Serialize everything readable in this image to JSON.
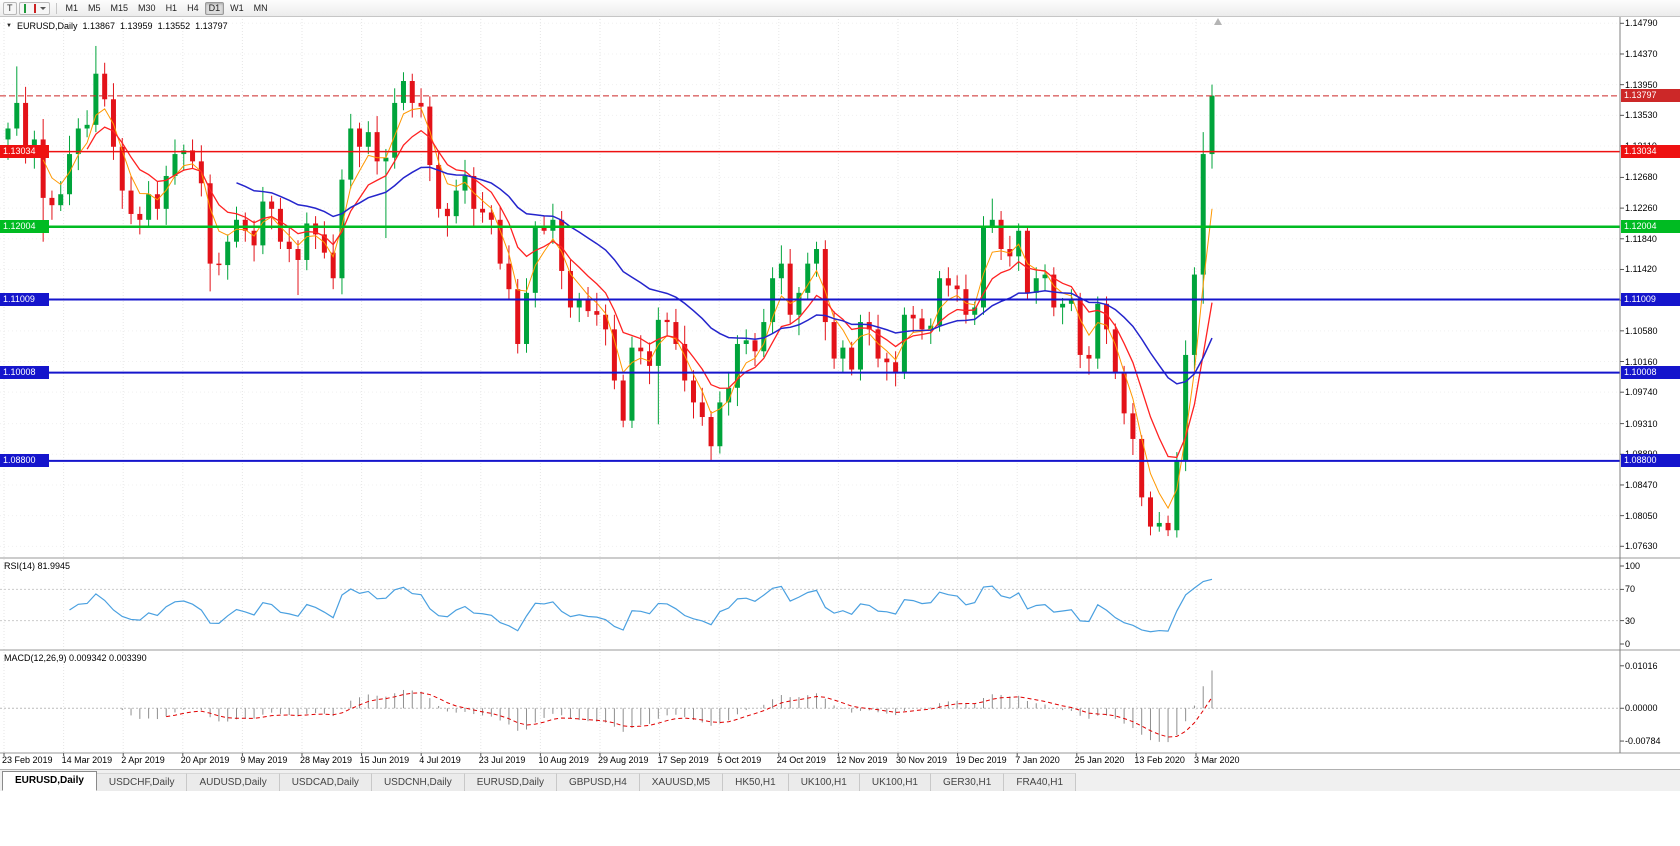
{
  "toolbar": {
    "tool_button": "T",
    "timeframes": [
      "M1",
      "M5",
      "M15",
      "M30",
      "H1",
      "H4",
      "D1",
      "W1",
      "MN"
    ],
    "active_timeframe": "D1"
  },
  "icons": {
    "symbol_caret": "▼"
  },
  "header": {
    "symbol": "EURUSD,Daily",
    "open": "1.13867",
    "high": "1.13959",
    "low": "1.13552",
    "close": "1.13797"
  },
  "chart_data": [
    {
      "type": "candlestick",
      "symbol": "EURUSD",
      "timeframe": "Daily",
      "ylim": [
        1.0747,
        1.1489
      ],
      "y_tick_labels": [
        "1.14790",
        "1.14370",
        "1.13950",
        "1.13530",
        "1.13110",
        "1.12680",
        "1.12260",
        "1.11840",
        "1.11420",
        "1.11000",
        "1.10580",
        "1.10160",
        "1.09740",
        "1.09310",
        "1.08890",
        "1.08470",
        "1.08050",
        "1.07630"
      ],
      "x_tick_labels": [
        "23 Feb 2019",
        "14 Mar 2019",
        "2 Apr 2019",
        "20 Apr 2019",
        "9 May 2019",
        "28 May 2019",
        "15 Jun 2019",
        "4 Jul 2019",
        "23 Jul 2019",
        "10 Aug 2019",
        "29 Aug 2019",
        "17 Sep 2019",
        "5 Oct 2019",
        "24 Oct 2019",
        "12 Nov 2019",
        "30 Nov 2019",
        "19 Dec 2019",
        "7 Jan 2020",
        "25 Jan 2020",
        "13 Feb 2020",
        "3 Mar 2020"
      ],
      "up_color": "#00a43b",
      "down_color": "#e31219",
      "grid_color": "#e6e6e6",
      "moving_averages": [
        {
          "render_period": 4,
          "color": "#ff9800",
          "width": 1
        },
        {
          "render_period": 9,
          "color": "#ff2222",
          "width": 1.3
        },
        {
          "render_period": 26,
          "color": "#2525cc",
          "width": 1.5
        }
      ],
      "horizontal_lines": [
        {
          "value": 1.13797,
          "label": "1.13797",
          "color": "#cc2828",
          "style": "dashed",
          "width": 1,
          "boxes": "right"
        },
        {
          "value": 1.13034,
          "label": "1.13034",
          "color": "#ee1111",
          "style": "solid",
          "width": 1.5,
          "boxes": "both"
        },
        {
          "value": 1.12004,
          "label": "1.12004",
          "color": "#00bb22",
          "style": "solid",
          "width": 2.5,
          "boxes": "both"
        },
        {
          "value": 1.11009,
          "label": "1.11009",
          "color": "#1515cc",
          "style": "solid",
          "width": 2,
          "boxes": "both"
        },
        {
          "value": 1.10008,
          "label": "1.10008",
          "color": "#1515cc",
          "style": "solid",
          "width": 2,
          "boxes": "both"
        },
        {
          "value": 1.088,
          "label": "1.08800",
          "color": "#1515cc",
          "style": "solid",
          "width": 2,
          "boxes": "both"
        }
      ],
      "candles": [
        [
          1.132,
          1.1343,
          1.1292,
          1.1335
        ],
        [
          1.1335,
          1.142,
          1.1325,
          1.137
        ],
        [
          1.137,
          1.1392,
          1.1287,
          1.1305
        ],
        [
          1.1305,
          1.1332,
          1.128,
          1.132
        ],
        [
          1.132,
          1.1348,
          1.118,
          1.124
        ],
        [
          1.124,
          1.125,
          1.121,
          1.123
        ],
        [
          1.123,
          1.1263,
          1.1222,
          1.1245
        ],
        [
          1.1245,
          1.1325,
          1.123,
          1.13
        ],
        [
          1.13,
          1.1349,
          1.1278,
          1.1335
        ],
        [
          1.1335,
          1.136,
          1.1323,
          1.134
        ],
        [
          1.134,
          1.1448,
          1.133,
          1.141
        ],
        [
          1.141,
          1.1425,
          1.1365,
          1.1375
        ],
        [
          1.1375,
          1.1397,
          1.1292,
          1.131
        ],
        [
          1.131,
          1.1322,
          1.1225,
          1.125
        ],
        [
          1.125,
          1.127,
          1.1204,
          1.1218
        ],
        [
          1.1218,
          1.1228,
          1.119,
          1.121
        ],
        [
          1.121,
          1.1263,
          1.1202,
          1.1245
        ],
        [
          1.1245,
          1.1262,
          1.121,
          1.1225
        ],
        [
          1.1225,
          1.1284,
          1.1203,
          1.127
        ],
        [
          1.127,
          1.132,
          1.1258,
          1.13
        ],
        [
          1.13,
          1.1313,
          1.1277,
          1.1305
        ],
        [
          1.1305,
          1.132,
          1.128,
          1.129
        ],
        [
          1.129,
          1.1312,
          1.1242,
          1.126
        ],
        [
          1.126,
          1.1272,
          1.1112,
          1.115
        ],
        [
          1.115,
          1.1165,
          1.1134,
          1.1148
        ],
        [
          1.1148,
          1.119,
          1.1128,
          1.118
        ],
        [
          1.118,
          1.1228,
          1.1172,
          1.121
        ],
        [
          1.121,
          1.122,
          1.118,
          1.1195
        ],
        [
          1.1195,
          1.1209,
          1.1153,
          1.1175
        ],
        [
          1.1175,
          1.1255,
          1.1163,
          1.1235
        ],
        [
          1.1235,
          1.1243,
          1.1197,
          1.1225
        ],
        [
          1.1225,
          1.124,
          1.117,
          1.118
        ],
        [
          1.118,
          1.1202,
          1.1152,
          1.117
        ],
        [
          1.117,
          1.1182,
          1.1107,
          1.1155
        ],
        [
          1.1155,
          1.122,
          1.1141,
          1.1205
        ],
        [
          1.1205,
          1.1215,
          1.117,
          1.119
        ],
        [
          1.119,
          1.1208,
          1.1157,
          1.1165
        ],
        [
          1.1165,
          1.119,
          1.1115,
          1.113
        ],
        [
          1.113,
          1.1279,
          1.1108,
          1.1265
        ],
        [
          1.1265,
          1.1355,
          1.1253,
          1.1335
        ],
        [
          1.1335,
          1.1343,
          1.1282,
          1.131
        ],
        [
          1.131,
          1.1345,
          1.13,
          1.133
        ],
        [
          1.133,
          1.1352,
          1.1272,
          1.129
        ],
        [
          1.129,
          1.1307,
          1.1185,
          1.1295
        ],
        [
          1.1295,
          1.139,
          1.128,
          1.137
        ],
        [
          1.137,
          1.1412,
          1.136,
          1.14
        ],
        [
          1.14,
          1.141,
          1.135,
          1.137
        ],
        [
          1.137,
          1.139,
          1.135,
          1.1365
        ],
        [
          1.1365,
          1.1379,
          1.1263,
          1.1285
        ],
        [
          1.1285,
          1.1305,
          1.1213,
          1.1225
        ],
        [
          1.1225,
          1.1233,
          1.1187,
          1.1215
        ],
        [
          1.1215,
          1.1265,
          1.1205,
          1.125
        ],
        [
          1.125,
          1.1292,
          1.1232,
          1.127
        ],
        [
          1.127,
          1.1282,
          1.12,
          1.1225
        ],
        [
          1.1225,
          1.1248,
          1.1206,
          1.122
        ],
        [
          1.122,
          1.123,
          1.119,
          1.121
        ],
        [
          1.121,
          1.1228,
          1.1142,
          1.115
        ],
        [
          1.115,
          1.1175,
          1.11,
          1.1115
        ],
        [
          1.1115,
          1.1129,
          1.1027,
          1.104
        ],
        [
          1.104,
          1.113,
          1.1028,
          1.111
        ],
        [
          1.111,
          1.1208,
          1.109,
          1.12
        ],
        [
          1.12,
          1.1215,
          1.119,
          1.1195
        ],
        [
          1.1195,
          1.1232,
          1.1177,
          1.121
        ],
        [
          1.121,
          1.1222,
          1.1115,
          1.114
        ],
        [
          1.114,
          1.1155,
          1.1076,
          1.109
        ],
        [
          1.109,
          1.111,
          1.107,
          1.11
        ],
        [
          1.11,
          1.1118,
          1.1077,
          1.1085
        ],
        [
          1.1085,
          1.111,
          1.1065,
          1.108
        ],
        [
          1.108,
          1.1094,
          1.1038,
          1.106
        ],
        [
          1.106,
          1.108,
          1.0978,
          1.099
        ],
        [
          1.099,
          1.0998,
          1.0926,
          1.0935
        ],
        [
          1.0935,
          1.105,
          1.0925,
          1.1035
        ],
        [
          1.1035,
          1.1052,
          1.1012,
          1.103
        ],
        [
          1.103,
          1.1042,
          1.0985,
          1.101
        ],
        [
          1.101,
          1.109,
          1.093,
          1.1073
        ],
        [
          1.1073,
          1.1083,
          1.105,
          1.107
        ],
        [
          1.107,
          1.1088,
          1.1032,
          1.104
        ],
        [
          1.104,
          1.1065,
          1.0975,
          1.099
        ],
        [
          1.099,
          1.1004,
          1.0938,
          1.096
        ],
        [
          1.096,
          1.098,
          1.0928,
          1.094
        ],
        [
          1.094,
          1.0948,
          1.0879,
          1.09
        ],
        [
          1.09,
          1.0975,
          1.089,
          1.096
        ],
        [
          1.096,
          1.1002,
          1.0942,
          1.098
        ],
        [
          1.098,
          1.1052,
          1.0955,
          1.104
        ],
        [
          1.104,
          1.106,
          1.1026,
          1.1045
        ],
        [
          1.1045,
          1.1055,
          1.101,
          1.103
        ],
        [
          1.103,
          1.1088,
          1.1022,
          1.107
        ],
        [
          1.107,
          1.1145,
          1.1055,
          1.113
        ],
        [
          1.113,
          1.1175,
          1.1108,
          1.115
        ],
        [
          1.115,
          1.117,
          1.1068,
          1.108
        ],
        [
          1.108,
          1.1118,
          1.1052,
          1.111
        ],
        [
          1.111,
          1.1165,
          1.11,
          1.115
        ],
        [
          1.115,
          1.118,
          1.1132,
          1.117
        ],
        [
          1.117,
          1.1182,
          1.1045,
          1.107
        ],
        [
          1.107,
          1.1085,
          1.1006,
          1.102
        ],
        [
          1.102,
          1.1045,
          1.1,
          1.1035
        ],
        [
          1.1035,
          1.1043,
          1.0997,
          1.1005
        ],
        [
          1.1005,
          1.108,
          1.099,
          1.107
        ],
        [
          1.107,
          1.1084,
          1.1038,
          1.106
        ],
        [
          1.106,
          1.108,
          1.1008,
          1.102
        ],
        [
          1.102,
          1.1028,
          1.099,
          1.1015
        ],
        [
          1.1015,
          1.103,
          1.0982,
          1.1
        ],
        [
          1.1,
          1.109,
          1.0992,
          1.108
        ],
        [
          1.108,
          1.1092,
          1.1055,
          1.1075
        ],
        [
          1.1075,
          1.1088,
          1.1046,
          1.106
        ],
        [
          1.106,
          1.1075,
          1.104,
          1.1065
        ],
        [
          1.1065,
          1.114,
          1.1057,
          1.113
        ],
        [
          1.113,
          1.1145,
          1.1105,
          1.112
        ],
        [
          1.112,
          1.1134,
          1.1098,
          1.1115
        ],
        [
          1.1115,
          1.1135,
          1.1068,
          1.108
        ],
        [
          1.108,
          1.1098,
          1.1066,
          1.109
        ],
        [
          1.109,
          1.1215,
          1.108,
          1.12
        ],
        [
          1.12,
          1.1239,
          1.1192,
          1.121
        ],
        [
          1.121,
          1.1222,
          1.1155,
          1.117
        ],
        [
          1.117,
          1.1188,
          1.1146,
          1.116
        ],
        [
          1.116,
          1.1205,
          1.114,
          1.1195
        ],
        [
          1.1195,
          1.12,
          1.1102,
          1.111
        ],
        [
          1.111,
          1.1145,
          1.1095,
          1.113
        ],
        [
          1.113,
          1.1149,
          1.1113,
          1.1135
        ],
        [
          1.1135,
          1.1145,
          1.1078,
          1.109
        ],
        [
          1.109,
          1.1103,
          1.1067,
          1.1095
        ],
        [
          1.1095,
          1.1115,
          1.1085,
          1.11
        ],
        [
          1.11,
          1.111,
          1.1007,
          1.1025
        ],
        [
          1.1025,
          1.1037,
          1.0998,
          1.102
        ],
        [
          1.102,
          1.1105,
          1.1006,
          1.1095
        ],
        [
          1.1095,
          1.1105,
          1.104,
          1.106
        ],
        [
          1.106,
          1.1068,
          1.0992,
          1.1
        ],
        [
          1.1,
          1.101,
          1.093,
          1.0945
        ],
        [
          1.0945,
          1.0959,
          1.0888,
          1.091
        ],
        [
          1.091,
          1.0915,
          1.0818,
          1.083
        ],
        [
          1.083,
          1.0838,
          1.0778,
          1.079
        ],
        [
          1.079,
          1.081,
          1.0783,
          1.0795
        ],
        [
          1.0795,
          1.0805,
          1.0777,
          1.0785
        ],
        [
          1.0785,
          1.0892,
          1.0775,
          1.088
        ],
        [
          1.088,
          1.1045,
          1.0866,
          1.1025
        ],
        [
          1.1025,
          1.1145,
          1.1005,
          1.1135
        ],
        [
          1.1135,
          1.133,
          1.1095,
          1.13
        ],
        [
          1.13,
          1.1395,
          1.128,
          1.138
        ]
      ]
    },
    {
      "type": "line",
      "indicator": "RSI",
      "label": "RSI(14) 81.9945",
      "period": 14,
      "render_period": 7,
      "current_value": 81.9945,
      "ylim": [
        0,
        100
      ],
      "y_ticks": [
        {
          "v": 100,
          "t": "100"
        },
        {
          "v": 70,
          "t": "70"
        },
        {
          "v": 30,
          "t": "30"
        },
        {
          "v": 0,
          "t": "0"
        }
      ],
      "levels": [
        70,
        30
      ],
      "color": "#4aa0e0"
    },
    {
      "type": "macd",
      "label": "MACD(12,26,9) 0.009342 0.003390",
      "params": [
        12,
        26,
        9
      ],
      "render_params": [
        6,
        13,
        5
      ],
      "main_value": 0.009342,
      "signal_value": 0.00339,
      "ylim": [
        -0.0095,
        0.0125
      ],
      "y_ticks": [
        {
          "v": 0.01016,
          "t": "0.01016"
        },
        {
          "v": 0,
          "t": "0.00000"
        },
        {
          "v": -0.00784,
          "t": "-0.00784"
        }
      ],
      "hist_color": "#8f8f8f",
      "signal_color": "#e00000"
    }
  ],
  "tabs": {
    "items": [
      "EURUSD,Daily",
      "USDCHF,Daily",
      "AUDUSD,Daily",
      "USDCAD,Daily",
      "USDCNH,Daily",
      "EURUSD,Daily",
      "GBPUSD,H4",
      "XAUUSD,M5",
      "HK50,H1",
      "UK100,H1",
      "UK100,H1",
      "GER30,H1",
      "FRA40,H1"
    ],
    "active_index": 0
  }
}
